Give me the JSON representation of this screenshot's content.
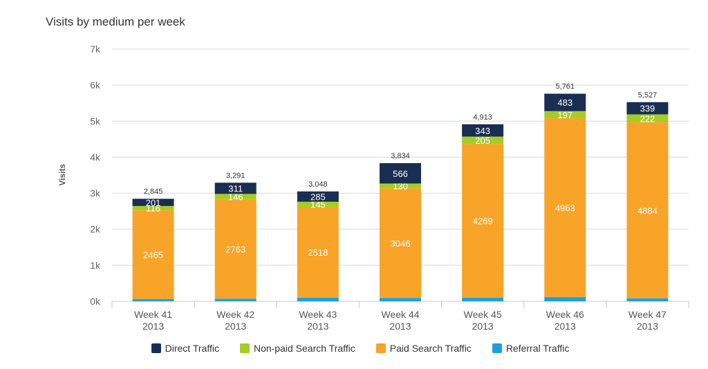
{
  "chart_data": {
    "type": "bar",
    "stacked": true,
    "title": "Visits by medium per week",
    "ylabel": "Visits",
    "xlabel": "",
    "ylim": [
      0,
      7000
    ],
    "yticks": [
      "0k",
      "1k",
      "2k",
      "3k",
      "4k",
      "5k",
      "6k",
      "7k"
    ],
    "categories": [
      [
        "Week 41",
        "2013"
      ],
      [
        "Week 42",
        "2013"
      ],
      [
        "Week 43",
        "2013"
      ],
      [
        "Week 44",
        "2013"
      ],
      [
        "Week 45",
        "2013"
      ],
      [
        "Week 46",
        "2013"
      ],
      [
        "Week 47",
        "2013"
      ]
    ],
    "series": [
      {
        "name": "Referral Traffic",
        "color": "#1ba1e2",
        "values": [
          63,
          71,
          100,
          92,
          96,
          118,
          82
        ]
      },
      {
        "name": "Paid Search Traffic",
        "color": "#f7a429",
        "values": [
          2465,
          2763,
          2518,
          3046,
          4269,
          4963,
          4884
        ]
      },
      {
        "name": "Non-paid Search Traffic",
        "color": "#a5cd26",
        "values": [
          116,
          146,
          145,
          130,
          205,
          197,
          222
        ]
      },
      {
        "name": "Direct Traffic",
        "color": "#1a2e52",
        "values": [
          201,
          311,
          285,
          566,
          343,
          483,
          339
        ]
      }
    ],
    "totals": [
      "2,845",
      "3,291",
      "3,048",
      "3,834",
      "4,913",
      "5,761",
      "5,527"
    ],
    "legend_order": [
      "Direct Traffic",
      "Non-paid Search Traffic",
      "Paid Search Traffic",
      "Referral Traffic"
    ],
    "grid": true,
    "legend_position": "bottom-center"
  }
}
